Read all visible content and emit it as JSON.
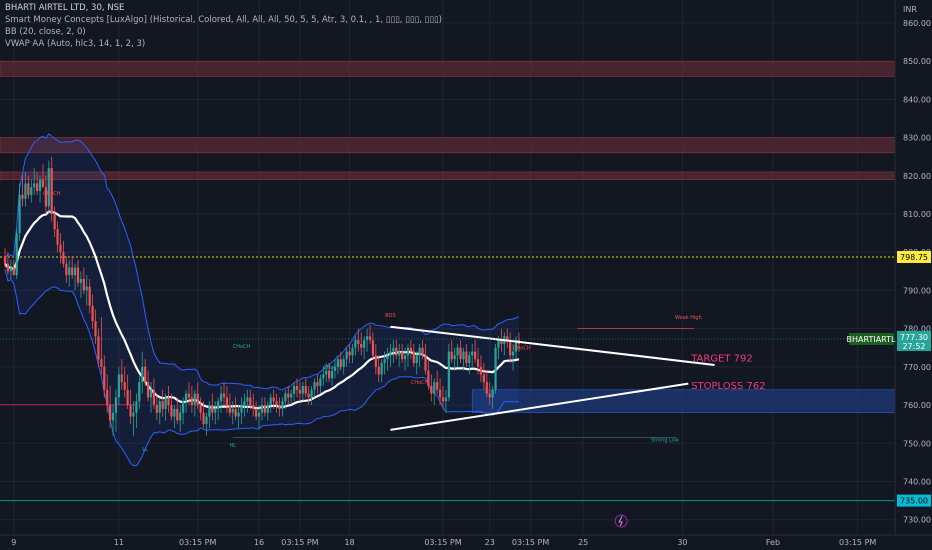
{
  "legend": {
    "symbol_line": "BHARTI AIRTEL LTD, 30, NSE",
    "indicator_1": "Smart Money Concepts [LuxAlgo] (Historical, Colored, All, All, All, 50, 5, 5, Atr, 3, 0.1, , 1, ▯▯▯, ▯▯▯, ▯▯▯)",
    "indicator_2": "BB (20, close, 2, 0)",
    "indicator_3": "VWAP AA (Auto, hlc3, 14, 1, 2, 3)"
  },
  "currency": "INR",
  "colors": {
    "background": "#131722",
    "up": "#26a69a",
    "down": "#ef5350",
    "bollinger": "#2962ff",
    "median": "#ffffff",
    "zone_red": "#5a2a33",
    "zone_blue": "#1e3a78",
    "dotted": "#e6e600",
    "teal_line": "#089981",
    "annotation": "#f23a7a"
  },
  "chart_data": {
    "type": "candlestick",
    "title": "BHARTI AIRTEL LTD, 30, NSE",
    "ylim": [
      726,
      866
    ],
    "y_ticks": [
      "730.00",
      "740.00",
      "750.00",
      "760.00",
      "770.00",
      "780.00",
      "790.00",
      "800.00",
      "810.00",
      "820.00",
      "830.00",
      "840.00",
      "850.00",
      "860.00"
    ],
    "x_ticks": [
      {
        "label": "9",
        "i": 3
      },
      {
        "label": "11",
        "i": 39
      },
      {
        "label": "03:15 PM",
        "i": 66
      },
      {
        "label": "16",
        "i": 87
      },
      {
        "label": "03:15 PM",
        "i": 101
      },
      {
        "label": "18",
        "i": 118
      },
      {
        "label": "03:15 PM",
        "i": 150
      },
      {
        "label": "23",
        "i": 166
      },
      {
        "label": "03:15 PM",
        "i": 180
      },
      {
        "label": "25",
        "i": 198
      },
      {
        "label": "30",
        "i": 232
      },
      {
        "label": "Feb",
        "i": 263
      },
      {
        "label": "03:15 PM",
        "i": 292
      }
    ],
    "last_price": {
      "symbol": "BHARTIARTL",
      "price": "777.30",
      "countdown": "27:52",
      "value": 777.3
    },
    "level_tags": [
      {
        "label": "798.75",
        "value": 798.75,
        "color": "#ffeb3b",
        "text_color": "#000000"
      },
      {
        "label": "735.00",
        "value": 735.0,
        "color": "#00bcd4",
        "text_color": "#000000"
      }
    ],
    "zones": [
      {
        "type": "supply",
        "from": 846,
        "to": 850
      },
      {
        "type": "supply",
        "from": 826,
        "to": 830
      },
      {
        "type": "supply",
        "from": 819,
        "to": 821
      },
      {
        "type": "demand",
        "from": 758,
        "to": 764
      }
    ],
    "lines": [
      {
        "name": "dotted",
        "value": 798.75
      },
      {
        "name": "teal",
        "value": 735.0
      },
      {
        "name": "red-level",
        "value": 760.1
      },
      {
        "name": "strong-low",
        "value": 751.5
      }
    ],
    "annotations": [
      {
        "text": "TARGET 792",
        "value": 772.5,
        "i": 235
      },
      {
        "text": "STOPLOSS 762",
        "value": 765.2,
        "i": 235
      }
    ],
    "smc_labels": [
      "CHoCH",
      "CHoCH",
      "CHoCH",
      "CHoCH",
      "CHoCH",
      "BOS",
      "HL",
      "LL",
      "Strong Low",
      "Weak High"
    ],
    "trendlines": [
      {
        "from": [
          132,
          780.5
        ],
        "to": [
          243,
          770.5
        ]
      },
      {
        "from": [
          132,
          753.5
        ],
        "to": [
          234,
          765.6
        ]
      }
    ],
    "candles": [
      [
        799,
        801,
        796,
        797
      ],
      [
        797,
        800,
        794,
        795
      ],
      [
        795,
        798,
        793,
        796
      ],
      [
        796,
        798,
        794,
        794
      ],
      [
        794,
        806,
        793,
        805
      ],
      [
        805,
        818,
        803,
        815
      ],
      [
        815,
        820,
        812,
        814
      ],
      [
        814,
        821,
        812,
        818
      ],
      [
        818,
        820,
        814,
        815
      ],
      [
        815,
        819,
        813,
        817
      ],
      [
        817,
        822,
        815,
        818
      ],
      [
        818,
        821,
        815,
        816
      ],
      [
        816,
        820,
        813,
        819
      ],
      [
        819,
        823,
        817,
        817
      ],
      [
        817,
        820,
        810,
        812
      ],
      [
        812,
        824,
        810,
        822
      ],
      [
        822,
        825,
        808,
        810
      ],
      [
        810,
        812,
        804,
        806
      ],
      [
        806,
        808,
        800,
        802
      ],
      [
        802,
        805,
        797,
        800
      ],
      [
        800,
        803,
        796,
        797
      ],
      [
        797,
        799,
        792,
        794
      ],
      [
        794,
        798,
        791,
        796
      ],
      [
        796,
        799,
        793,
        794
      ],
      [
        794,
        797,
        790,
        796
      ],
      [
        796,
        798,
        791,
        792
      ],
      [
        792,
        795,
        788,
        793
      ],
      [
        793,
        796,
        789,
        790
      ],
      [
        790,
        794,
        786,
        791
      ],
      [
        791,
        793,
        784,
        786
      ],
      [
        786,
        789,
        780,
        782
      ],
      [
        782,
        785,
        776,
        778
      ],
      [
        778,
        780,
        770,
        772
      ],
      [
        772,
        783,
        768,
        770
      ],
      [
        770,
        773,
        762,
        764
      ],
      [
        764,
        768,
        758,
        760
      ],
      [
        760,
        765,
        754,
        756
      ],
      [
        756,
        760,
        752,
        758
      ],
      [
        758,
        764,
        753,
        762
      ],
      [
        762,
        770,
        760,
        768
      ],
      [
        768,
        772,
        764,
        766
      ],
      [
        766,
        770,
        762,
        764
      ],
      [
        764,
        768,
        759,
        760
      ],
      [
        760,
        764,
        755,
        757
      ],
      [
        757,
        761,
        752,
        758
      ],
      [
        758,
        763,
        754,
        761
      ],
      [
        761,
        768,
        759,
        766
      ],
      [
        766,
        774,
        763,
        770
      ],
      [
        770,
        772,
        765,
        766
      ],
      [
        766,
        769,
        761,
        762
      ],
      [
        762,
        766,
        758,
        764
      ],
      [
        764,
        767,
        759,
        760
      ],
      [
        760,
        763,
        756,
        758
      ],
      [
        758,
        762,
        755,
        761
      ],
      [
        761,
        764,
        757,
        759
      ],
      [
        759,
        763,
        756,
        762
      ],
      [
        762,
        765,
        758,
        760
      ],
      [
        760,
        763,
        756,
        757
      ],
      [
        757,
        760,
        754,
        759
      ],
      [
        759,
        762,
        755,
        756
      ],
      [
        756,
        760,
        753,
        758
      ],
      [
        758,
        762,
        755,
        761
      ],
      [
        761,
        764,
        758,
        763
      ],
      [
        763,
        766,
        760,
        762
      ],
      [
        762,
        765,
        758,
        760
      ],
      [
        760,
        764,
        757,
        763
      ],
      [
        763,
        766,
        759,
        760
      ],
      [
        760,
        762,
        756,
        758
      ],
      [
        758,
        761,
        754,
        755
      ],
      [
        755,
        758,
        752,
        757
      ],
      [
        757,
        761,
        754,
        760
      ],
      [
        760,
        763,
        756,
        758
      ],
      [
        758,
        761,
        755,
        759
      ],
      [
        759,
        762,
        756,
        761
      ],
      [
        761,
        765,
        758,
        763
      ],
      [
        763,
        766,
        760,
        762
      ],
      [
        762,
        765,
        758,
        760
      ],
      [
        760,
        763,
        757,
        758
      ],
      [
        758,
        761,
        755,
        759
      ],
      [
        759,
        762,
        756,
        757
      ],
      [
        757,
        760,
        754,
        758
      ],
      [
        758,
        762,
        755,
        760
      ],
      [
        760,
        763,
        757,
        761
      ],
      [
        761,
        764,
        758,
        762
      ],
      [
        762,
        764,
        759,
        760
      ],
      [
        760,
        763,
        757,
        759
      ],
      [
        759,
        761,
        756,
        757
      ],
      [
        757,
        760,
        754,
        758
      ],
      [
        758,
        762,
        756,
        760
      ],
      [
        760,
        762,
        757,
        758
      ],
      [
        758,
        761,
        756,
        760
      ],
      [
        760,
        763,
        758,
        762
      ],
      [
        762,
        764,
        759,
        761
      ],
      [
        761,
        763,
        758,
        760
      ],
      [
        760,
        762,
        757,
        759
      ],
      [
        759,
        762,
        757,
        761
      ],
      [
        761,
        764,
        759,
        763
      ],
      [
        763,
        765,
        760,
        762
      ],
      [
        762,
        764,
        760,
        763
      ],
      [
        763,
        766,
        761,
        765
      ],
      [
        765,
        767,
        762,
        764
      ],
      [
        764,
        766,
        761,
        763
      ],
      [
        763,
        766,
        761,
        765
      ],
      [
        765,
        767,
        762,
        763
      ],
      [
        763,
        765,
        760,
        762
      ],
      [
        762,
        765,
        760,
        764
      ],
      [
        764,
        767,
        762,
        766
      ],
      [
        766,
        768,
        763,
        765
      ],
      [
        765,
        768,
        763,
        767
      ],
      [
        767,
        770,
        765,
        768
      ],
      [
        768,
        771,
        766,
        769
      ],
      [
        769,
        771,
        766,
        767
      ],
      [
        767,
        770,
        765,
        769
      ],
      [
        769,
        772,
        767,
        770
      ],
      [
        770,
        773,
        768,
        772
      ],
      [
        772,
        774,
        769,
        770
      ],
      [
        770,
        773,
        768,
        772
      ],
      [
        772,
        775,
        770,
        774
      ],
      [
        774,
        776,
        771,
        773
      ],
      [
        773,
        776,
        771,
        775
      ],
      [
        775,
        778,
        773,
        777
      ],
      [
        777,
        780,
        774,
        776
      ],
      [
        776,
        779,
        773,
        775
      ],
      [
        775,
        778,
        772,
        777
      ],
      [
        777,
        780,
        774,
        778
      ],
      [
        778,
        781,
        776,
        777
      ],
      [
        777,
        779,
        772,
        773
      ],
      [
        773,
        776,
        768,
        770
      ],
      [
        770,
        773,
        766,
        768
      ],
      [
        768,
        772,
        766,
        771
      ],
      [
        771,
        774,
        768,
        772
      ],
      [
        772,
        775,
        769,
        773
      ],
      [
        773,
        776,
        770,
        774
      ],
      [
        774,
        777,
        771,
        775
      ],
      [
        775,
        777,
        772,
        773
      ],
      [
        773,
        776,
        770,
        774
      ],
      [
        774,
        776,
        771,
        772
      ],
      [
        772,
        775,
        769,
        773
      ],
      [
        773,
        776,
        770,
        775
      ],
      [
        775,
        777,
        772,
        774
      ],
      [
        774,
        776,
        770,
        771
      ],
      [
        771,
        774,
        768,
        773
      ],
      [
        773,
        776,
        770,
        775
      ],
      [
        775,
        777,
        772,
        773
      ],
      [
        773,
        776,
        768,
        769
      ],
      [
        769,
        772,
        764,
        765
      ],
      [
        765,
        768,
        761,
        763
      ],
      [
        763,
        767,
        760,
        766
      ],
      [
        766,
        769,
        763,
        764
      ],
      [
        764,
        767,
        760,
        762
      ],
      [
        762,
        765,
        759,
        761
      ],
      [
        761,
        764,
        758,
        762
      ],
      [
        762,
        776,
        761,
        774
      ],
      [
        774,
        777,
        771,
        772
      ],
      [
        772,
        775,
        769,
        773
      ],
      [
        773,
        776,
        770,
        775
      ],
      [
        775,
        777,
        771,
        772
      ],
      [
        772,
        775,
        769,
        774
      ],
      [
        774,
        776,
        770,
        771
      ],
      [
        771,
        774,
        768,
        773
      ],
      [
        773,
        776,
        770,
        774
      ],
      [
        774,
        777,
        771,
        772
      ],
      [
        772,
        775,
        768,
        770
      ],
      [
        770,
        773,
        766,
        768
      ],
      [
        768,
        771,
        764,
        766
      ],
      [
        766,
        769,
        762,
        763
      ],
      [
        763,
        766,
        760,
        762
      ],
      [
        762,
        765,
        759,
        764
      ],
      [
        764,
        776,
        763,
        775
      ],
      [
        775,
        778,
        772,
        777
      ],
      [
        777,
        780,
        774,
        776
      ],
      [
        776,
        779,
        773,
        778
      ],
      [
        778,
        780,
        775,
        777
      ],
      [
        777,
        779,
        771,
        773
      ],
      [
        773,
        776,
        769,
        774
      ],
      [
        774,
        778,
        772,
        777
      ],
      [
        777,
        779,
        774,
        776
      ]
    ]
  }
}
